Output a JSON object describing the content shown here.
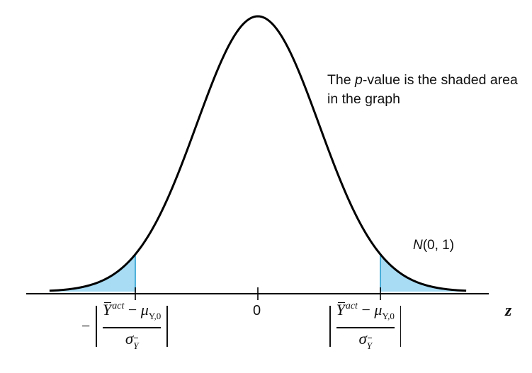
{
  "chart_data": {
    "type": "area",
    "distribution": "standard normal density",
    "x_range": [
      -3.4,
      3.4
    ],
    "mean": 0,
    "sd": 1,
    "tick_labels": [
      "0"
    ],
    "critical_value_z": 2.0,
    "shaded_tails": [
      "left",
      "right"
    ],
    "xlabel": "z",
    "curve_label": {
      "italic": "N",
      "rest": "(0, 1)"
    },
    "annotation": {
      "line1_pre": "The ",
      "line1_p": "p",
      "line1_post": "-value is the shaded area",
      "line2": "in the graph"
    },
    "left_label": {
      "minus": "−",
      "ybar": "Y",
      "sup": "act",
      "op": " − ",
      "mu": "μ",
      "mu_sub": "Y,0",
      "sigma": "σ",
      "sigma_sub": "Y"
    },
    "right_label": {
      "ybar": "Y",
      "sup": "act",
      "op": " − ",
      "mu": "μ",
      "mu_sub": "Y,0",
      "sigma": "σ",
      "sigma_sub": "Y"
    },
    "colors": {
      "shade_fill": "#a8dcf4",
      "shade_edge": "#2a9fd0",
      "curve": "#000000",
      "axis": "#000000"
    }
  }
}
